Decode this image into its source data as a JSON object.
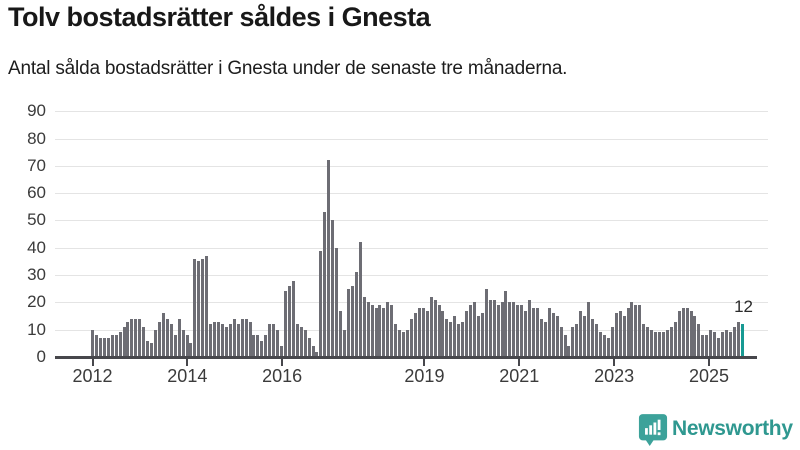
{
  "header": {
    "title": "Tolv bostadsrätter såldes i Gnesta",
    "subtitle": "Antal sålda bostadsrätter i Gnesta under de senaste tre månaderna."
  },
  "chart_data": {
    "type": "bar",
    "title": "Tolv bostadsrätter såldes i Gnesta",
    "subtitle": "Antal sålda bostadsrätter i Gnesta under de senaste tre månaderna.",
    "frequency": "monthly",
    "ylim": [
      0,
      95
    ],
    "yticks": [
      0,
      10,
      20,
      30,
      40,
      50,
      60,
      70,
      80,
      90
    ],
    "grid": true,
    "xticks": [
      {
        "label": "2012",
        "month_index": 0
      },
      {
        "label": "2014",
        "month_index": 24
      },
      {
        "label": "2016",
        "month_index": 48
      },
      {
        "label": "2019",
        "month_index": 84
      },
      {
        "label": "2021",
        "month_index": 108
      },
      {
        "label": "2023",
        "month_index": 132
      },
      {
        "label": "2025",
        "month_index": 156
      }
    ],
    "series": [
      {
        "year": "2012",
        "values": [
          10,
          8,
          7,
          7,
          7,
          8,
          8,
          9,
          11,
          13,
          14,
          14
        ]
      },
      {
        "year": "2013",
        "values": [
          14,
          11,
          6,
          5,
          10,
          13,
          16,
          14,
          12,
          8,
          14,
          10
        ]
      },
      {
        "year": "2014",
        "values": [
          8,
          5,
          36,
          35,
          36,
          37,
          12,
          13,
          13,
          12,
          11,
          12
        ]
      },
      {
        "year": "2015",
        "values": [
          14,
          12,
          14,
          14,
          13,
          8,
          8,
          6,
          8,
          12,
          12,
          10
        ]
      },
      {
        "year": "2016",
        "values": [
          4,
          24,
          26,
          28,
          12,
          11,
          10,
          7,
          4,
          2,
          39,
          53
        ]
      },
      {
        "year": "2017",
        "values": [
          72,
          50,
          40,
          17,
          10,
          25,
          26,
          31,
          42,
          22,
          20,
          19
        ]
      },
      {
        "year": "2018",
        "values": [
          18,
          19,
          18,
          20,
          19,
          12,
          10,
          9,
          10,
          14,
          16,
          18
        ]
      },
      {
        "year": "2019",
        "values": [
          18,
          17,
          22,
          21,
          19,
          17,
          14,
          13,
          15,
          12,
          13,
          17
        ]
      },
      {
        "year": "2020",
        "values": [
          19,
          20,
          15,
          16,
          25,
          21,
          21,
          19,
          20,
          24,
          20,
          20
        ]
      },
      {
        "year": "2021",
        "values": [
          19,
          19,
          17,
          21,
          18,
          18,
          14,
          13,
          18,
          16,
          15,
          11
        ]
      },
      {
        "year": "2022",
        "values": [
          8,
          4,
          11,
          12,
          17,
          15,
          20,
          14,
          12,
          9,
          8,
          7
        ]
      },
      {
        "year": "2023",
        "values": [
          11,
          16,
          17,
          15,
          18,
          20,
          19,
          19,
          12,
          11,
          10,
          9
        ]
      },
      {
        "year": "2024",
        "values": [
          9,
          9,
          10,
          11,
          13,
          17,
          18,
          18,
          17,
          15,
          12,
          8
        ]
      },
      {
        "year": "2025",
        "values": [
          8,
          10,
          9,
          7,
          9,
          10,
          9,
          11,
          13,
          12
        ]
      }
    ],
    "highlight": {
      "position": "last",
      "value": 12,
      "label": "12"
    }
  },
  "footer": {
    "brand": "Newsworthy"
  },
  "colors": {
    "bar": "#6d6d74",
    "highlight": "#179a93",
    "grid": "#e4e4e4",
    "axis": "#47474c",
    "brand_text": "#2f9890",
    "logo": "#3ca29a"
  },
  "icons": {
    "logo": "newsworthy-speech-bubble-bar-chart-icon"
  }
}
